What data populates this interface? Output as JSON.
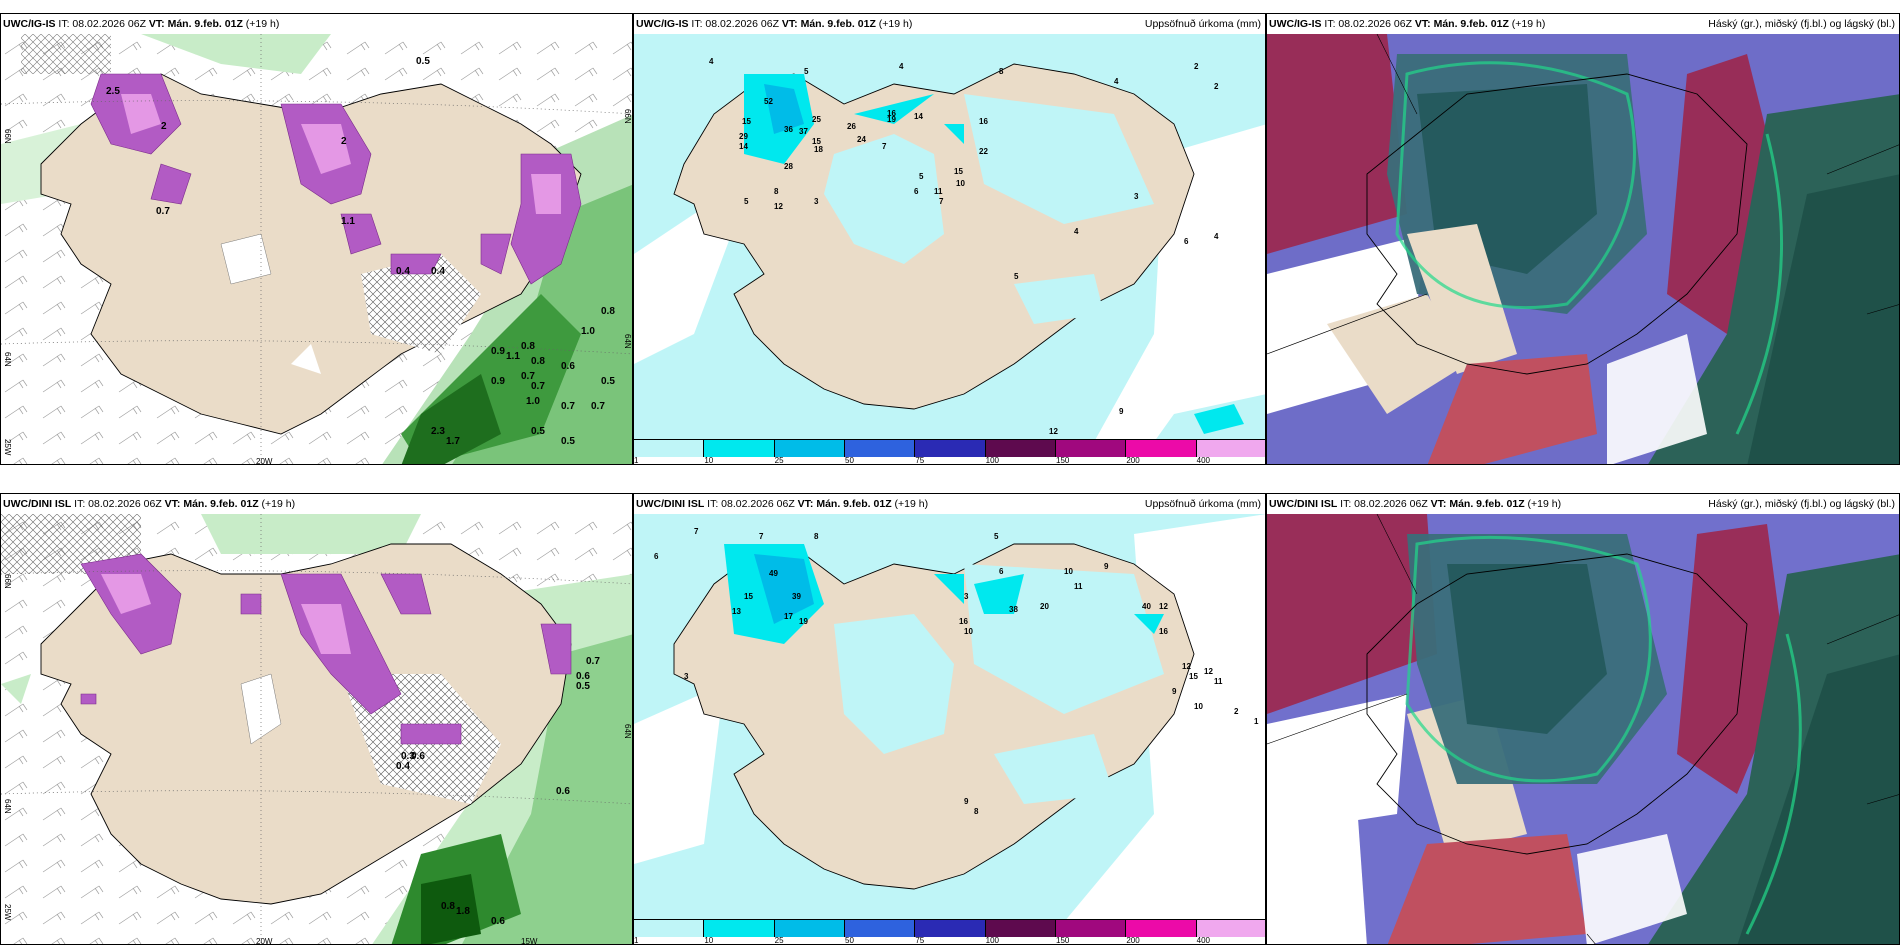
{
  "panels": [
    {
      "model": "UWC/IG-IS",
      "it": "IT: 08.02.2026 06Z",
      "vt": "VT: Mán. 9.feb. 01Z",
      "lead": "(+19 h)",
      "right": ""
    },
    {
      "model": "UWC/IG-IS",
      "it": "IT: 08.02.2026 06Z",
      "vt": "VT: Mán. 9.feb. 01Z",
      "lead": "(+19 h)",
      "right": "Uppsöfnuð úrkoma (mm)"
    },
    {
      "model": "UWC/IG-IS",
      "it": "IT: 08.02.2026 06Z",
      "vt": "VT: Mán. 9.feb. 01Z",
      "lead": "(+19 h)",
      "right": "Háský (gr.), miðský (fj.bl.) og lágský (bl.)"
    },
    {
      "model": "UWC/DINI ISL",
      "it": "IT: 08.02.2026 06Z",
      "vt": "VT: Mán. 9.feb. 01Z",
      "lead": "(+19 h)",
      "right": ""
    },
    {
      "model": "UWC/DINI ISL",
      "it": "IT: 08.02.2026 06Z",
      "vt": "VT: Mán. 9.feb. 01Z",
      "lead": "(+19 h)",
      "right": "Uppsöfnuð úrkoma (mm)"
    },
    {
      "model": "UWC/DINI ISL",
      "it": "IT: 08.02.2026 06Z",
      "vt": "VT: Mán. 9.feb. 01Z",
      "lead": "(+19 h)",
      "right": "Háský (gr.), miðský (fj.bl.) og lágský (bl.)"
    }
  ],
  "coords": {
    "lat66": "66N",
    "lat64": "64N",
    "lon20": "20W",
    "lon25": "25W",
    "lon15": "15W",
    "lat64b": "64N",
    "lat66b": "66N"
  },
  "legend": {
    "labels": [
      "1",
      "10",
      "25",
      "50",
      "75",
      "100",
      "150",
      "200",
      "400"
    ],
    "colors": [
      "#bff5f7",
      "#00e8ee",
      "#00bce8",
      "#2e62de",
      "#2a2ab4",
      "#5e0a4e",
      "#a0087e",
      "#ec0aa8",
      "#f0a8ee"
    ]
  },
  "top_left_labels": [
    "0.5",
    "2.5",
    "2",
    "2",
    "0.7",
    "1.1",
    "0.4",
    "0.4",
    "0.9",
    "0.8",
    "1.1",
    "0.8",
    "0.9",
    "0.7",
    "0.7",
    "0.5",
    "1.0",
    "0.7",
    "0.5",
    "0.5",
    "1.7",
    "2.3",
    "0.7",
    "0.6",
    "0.8",
    "1.0"
  ],
  "top_mid_labels": [
    "4",
    "5",
    "4",
    "8",
    "4",
    "2",
    "2",
    "52",
    "37",
    "36",
    "28",
    "29",
    "14",
    "15",
    "16",
    "25",
    "15",
    "18",
    "26",
    "24",
    "19",
    "7",
    "5",
    "14",
    "16",
    "22",
    "15",
    "10",
    "11",
    "6",
    "7",
    "3",
    "12",
    "8",
    "5",
    "5",
    "9",
    "12",
    "4",
    "4",
    "3",
    "6"
  ],
  "bot_left_labels": [
    "0.4",
    "0.3",
    "0.6",
    "0.6",
    "0.5",
    "0.7",
    "0.6",
    "1.8",
    "0.6",
    "0.8"
  ],
  "bot_mid_labels": [
    "7",
    "6",
    "7",
    "8",
    "5",
    "10",
    "11",
    "9",
    "3",
    "6",
    "49",
    "39",
    "15",
    "13",
    "17",
    "19",
    "12",
    "16",
    "10",
    "38",
    "20",
    "16",
    "40",
    "12",
    "15",
    "9",
    "8",
    "3",
    "1",
    "2",
    "11",
    "12",
    "9",
    "10"
  ]
}
